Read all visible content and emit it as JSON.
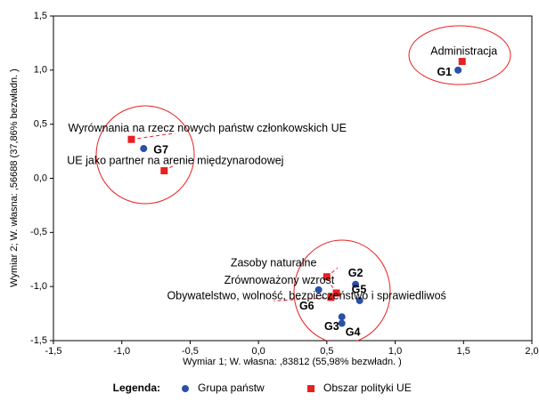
{
  "chart_data": {
    "type": "scatter",
    "x_label": "Wymiar   1; W. własna:  ,83812 (55,98% bezwładn. )",
    "y_label": "Wymiar    2; W. własna:  ,56688 (37,86% bezwładn. )",
    "legend_title": "Legenda:",
    "xlim": [
      -1.5,
      2.0
    ],
    "ylim": [
      -1.5,
      1.5
    ],
    "xticks": [
      {
        "value": -1.5,
        "label": "-1,5"
      },
      {
        "value": -1.0,
        "label": "-1,0"
      },
      {
        "value": -0.5,
        "label": "-0,5"
      },
      {
        "value": 0.0,
        "label": "0,0"
      },
      {
        "value": 0.5,
        "label": "0,5"
      },
      {
        "value": 1.0,
        "label": "1,0"
      },
      {
        "value": 1.5,
        "label": "1,5"
      },
      {
        "value": 2.0,
        "label": "2,0"
      }
    ],
    "yticks": [
      {
        "value": -1.5,
        "label": "-1,5"
      },
      {
        "value": -1.0,
        "label": "-1,0"
      },
      {
        "value": -0.5,
        "label": "-0,5"
      },
      {
        "value": 0.0,
        "label": "0,0"
      },
      {
        "value": 0.5,
        "label": "0,5"
      },
      {
        "value": 1.0,
        "label": "1,0"
      },
      {
        "value": 1.5,
        "label": "1,5"
      }
    ],
    "series": [
      {
        "name": "Grupa państw",
        "color": "#2a50a8",
        "marker": "circle",
        "labels": [
          "G1",
          "G7",
          "G2",
          "G5",
          "G6",
          "G4",
          "G3"
        ],
        "x": [
          1.46,
          -0.84,
          0.71,
          0.74,
          0.44,
          0.61,
          0.61
        ],
        "values": [
          1.0,
          0.275,
          -0.98,
          -1.13,
          -1.03,
          -1.28,
          -1.34
        ]
      },
      {
        "name": "Obszar polityki UE",
        "color": "#e82020",
        "marker": "square",
        "labels": [
          "Administracja",
          "Wyrównania na rzecz nowych państw członkowskich UE",
          "UE jako partner na arenie międzynarodowej",
          "Zasoby naturalne",
          "Zrównoważony wzrost",
          "Obywatelstwo, wolność, bezpieczeństwo i sprawiedliwoś"
        ],
        "x": [
          1.49,
          -0.93,
          -0.69,
          0.5,
          0.57,
          0.53
        ],
        "values": [
          1.08,
          0.36,
          0.07,
          -0.91,
          -1.06,
          -1.1
        ]
      }
    ]
  }
}
